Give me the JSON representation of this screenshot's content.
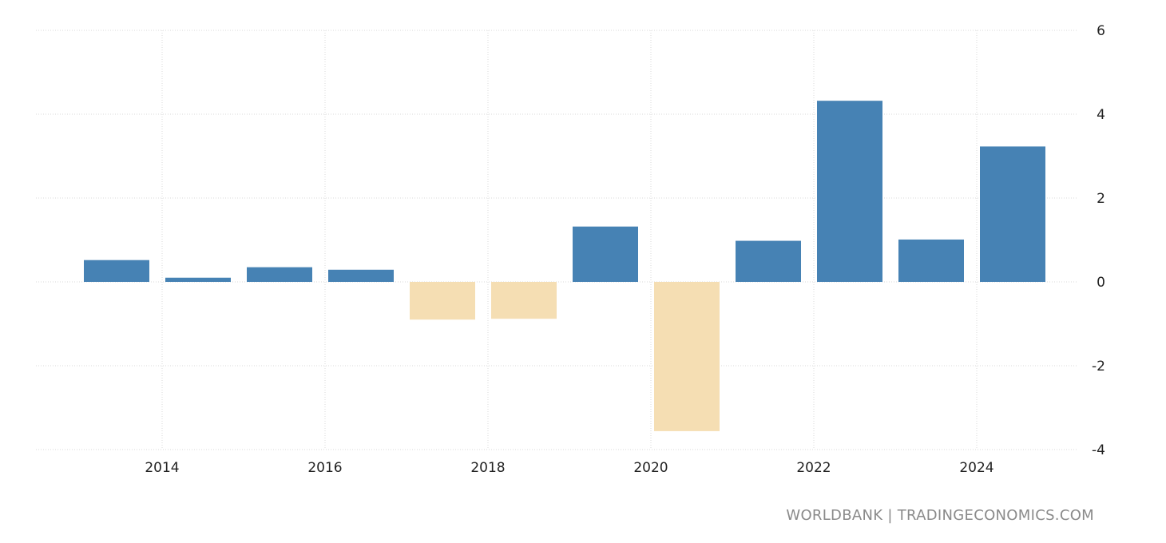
{
  "chart_data": {
    "type": "bar",
    "title": "",
    "xlabel": "",
    "ylabel": "",
    "x": [
      2013,
      2014,
      2015,
      2016,
      2017,
      2018,
      2019,
      2020,
      2021,
      2022,
      2023,
      2024
    ],
    "values": [
      0.52,
      0.1,
      0.35,
      0.29,
      -0.9,
      -0.88,
      1.32,
      -3.56,
      0.98,
      4.32,
      1.01,
      3.23
    ],
    "xticks": [
      "2014",
      "2016",
      "2018",
      "2020",
      "2022",
      "2024"
    ],
    "yticks": [
      "6",
      "4",
      "2",
      "0",
      "-2",
      "-4"
    ],
    "ylim": [
      -4,
      6
    ],
    "grid": true,
    "legend": "none",
    "colors": {
      "positive": "#4682b4",
      "negative": "#f5deb3"
    }
  },
  "source": "WORLDBANK | TRADINGECONOMICS.COM"
}
